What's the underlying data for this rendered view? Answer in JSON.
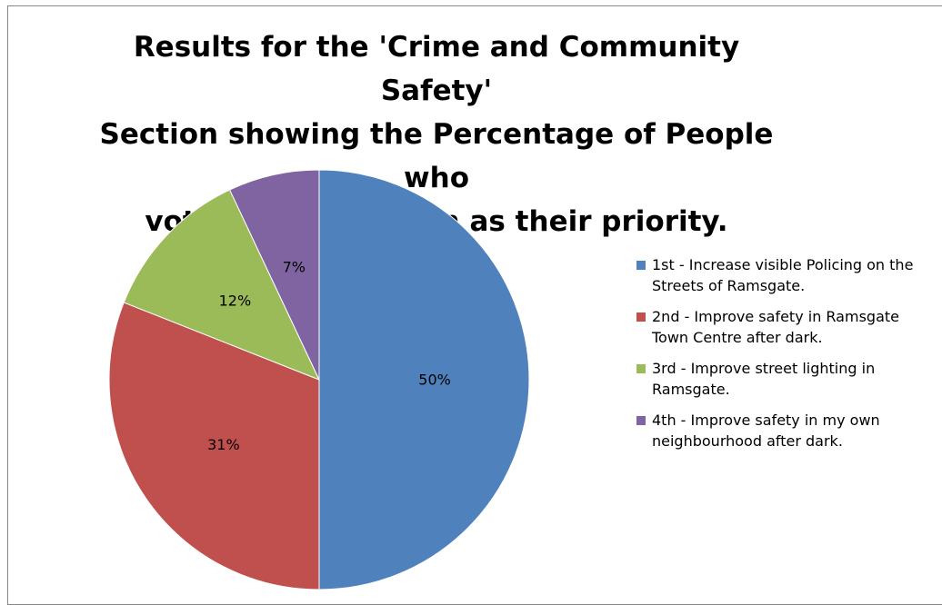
{
  "chart_data": {
    "type": "pie",
    "title_lines": [
      "Results for the 'Crime and Community Safety'",
      "Section showing the Percentage of People who",
      "voted that question as their priority."
    ],
    "slices": [
      {
        "label_lines": [
          "1st - Increase visible Policing on the",
          "Streets of Ramsgate."
        ],
        "value": 50,
        "data_label": "50%",
        "color": "#4F81BD"
      },
      {
        "label_lines": [
          "2nd - Improve safety in Ramsgate",
          "Town Centre after dark."
        ],
        "value": 31,
        "data_label": "31%",
        "color": "#C0504D"
      },
      {
        "label_lines": [
          "3rd - Improve street lighting in",
          "Ramsgate."
        ],
        "value": 12,
        "data_label": "12%",
        "color": "#9BBB59"
      },
      {
        "label_lines": [
          "4th - Improve safety in my own",
          "neighbourhood after dark."
        ],
        "value": 7,
        "data_label": "7%",
        "color": "#8064A2"
      }
    ],
    "legend_position": "right",
    "start_angle": "12 o'clock",
    "direction": "clockwise"
  }
}
